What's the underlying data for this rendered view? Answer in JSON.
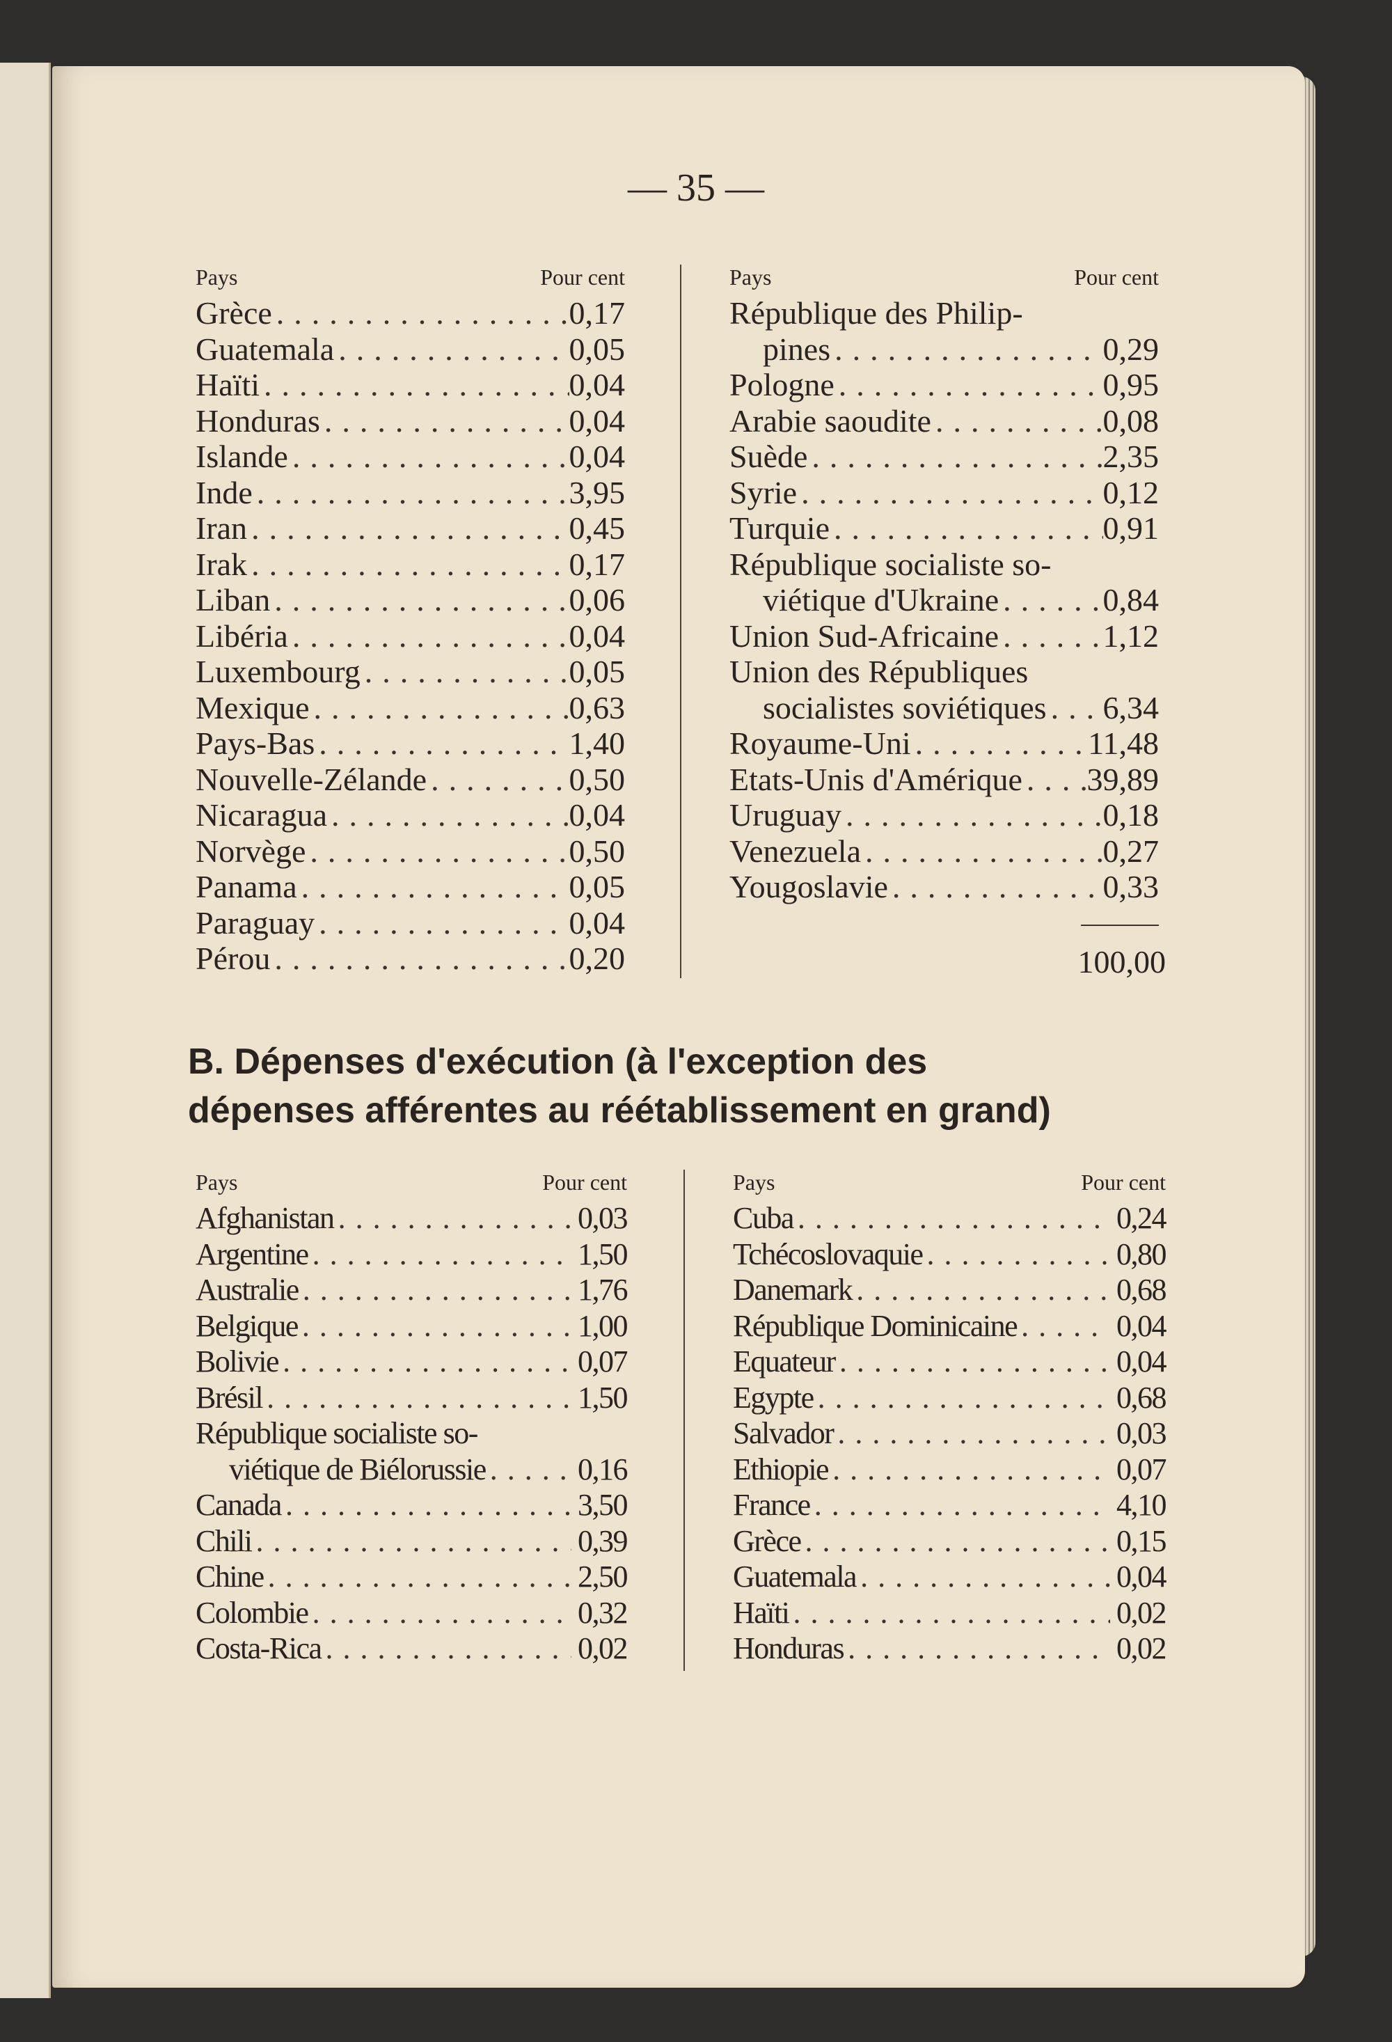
{
  "page_number": "— 35 —",
  "headers": {
    "country": "Pays",
    "percent": "Pour cent"
  },
  "section_a": {
    "left": [
      {
        "lines": [
          "Grèce"
        ],
        "value": "0,17"
      },
      {
        "lines": [
          "Guatemala"
        ],
        "value": "0,05"
      },
      {
        "lines": [
          "Haïti"
        ],
        "value": "0,04"
      },
      {
        "lines": [
          "Honduras"
        ],
        "value": "0,04"
      },
      {
        "lines": [
          "Islande"
        ],
        "value": "0,04"
      },
      {
        "lines": [
          "Inde"
        ],
        "value": "3,95"
      },
      {
        "lines": [
          "Iran"
        ],
        "value": "0,45"
      },
      {
        "lines": [
          "Irak"
        ],
        "value": "0,17"
      },
      {
        "lines": [
          "Liban"
        ],
        "value": "0,06"
      },
      {
        "lines": [
          "Libéria"
        ],
        "value": "0,04"
      },
      {
        "lines": [
          "Luxembourg"
        ],
        "value": "0,05"
      },
      {
        "lines": [
          "Mexique"
        ],
        "value": "0,63"
      },
      {
        "lines": [
          "Pays-Bas"
        ],
        "value": "1,40"
      },
      {
        "lines": [
          "Nouvelle-Zélande"
        ],
        "value": "0,50"
      },
      {
        "lines": [
          "Nicaragua"
        ],
        "value": "0,04"
      },
      {
        "lines": [
          "Norvège"
        ],
        "value": "0,50"
      },
      {
        "lines": [
          "Panama"
        ],
        "value": "0,05"
      },
      {
        "lines": [
          "Paraguay"
        ],
        "value": "0,04"
      },
      {
        "lines": [
          "Pérou"
        ],
        "value": "0,20"
      }
    ],
    "right": [
      {
        "lines": [
          "République des Philip-",
          "pines"
        ],
        "value": "0,29"
      },
      {
        "lines": [
          "Pologne"
        ],
        "value": "0,95"
      },
      {
        "lines": [
          "Arabie saoudite"
        ],
        "value": "0,08"
      },
      {
        "lines": [
          "Suède"
        ],
        "value": "2,35"
      },
      {
        "lines": [
          "Syrie"
        ],
        "value": "0,12"
      },
      {
        "lines": [
          "Turquie"
        ],
        "value": "0,91"
      },
      {
        "lines": [
          "République socialiste so-",
          "viétique d'Ukraine"
        ],
        "value": "0,84"
      },
      {
        "lines": [
          "Union Sud-Africaine"
        ],
        "value": "1,12"
      },
      {
        "lines": [
          "Union des Républiques",
          "socialistes soviétiques"
        ],
        "value": "6,34"
      },
      {
        "lines": [
          "Royaume-Uni"
        ],
        "value": "11,48"
      },
      {
        "lines": [
          "Etats-Unis d'Amérique"
        ],
        "value": "39,89"
      },
      {
        "lines": [
          "Uruguay"
        ],
        "value": "0,18"
      },
      {
        "lines": [
          "Venezuela"
        ],
        "value": "0,27"
      },
      {
        "lines": [
          "Yougoslavie"
        ],
        "value": "0,33"
      }
    ],
    "total": "100,00"
  },
  "section_b": {
    "title_line1": "B. Dépenses d'exécution (à l'exception des",
    "title_line2": "dépenses afférentes au réétablissement en grand)",
    "left": [
      {
        "lines": [
          "Afghanistan"
        ],
        "value": "0,03"
      },
      {
        "lines": [
          "Argentine"
        ],
        "value": "1,50"
      },
      {
        "lines": [
          "Australie"
        ],
        "value": "1,76"
      },
      {
        "lines": [
          "Belgique"
        ],
        "value": "1,00"
      },
      {
        "lines": [
          "Bolivie"
        ],
        "value": "0,07"
      },
      {
        "lines": [
          "Brésil"
        ],
        "value": "1,50"
      },
      {
        "lines": [
          "République socialiste so-",
          "viétique de Biélorussie"
        ],
        "value": "0,16"
      },
      {
        "lines": [
          "Canada"
        ],
        "value": "3,50"
      },
      {
        "lines": [
          "Chili"
        ],
        "value": "0,39"
      },
      {
        "lines": [
          "Chine"
        ],
        "value": "2,50"
      },
      {
        "lines": [
          "Colombie"
        ],
        "value": "0,32"
      },
      {
        "lines": [
          "Costa-Rica"
        ],
        "value": "0,02"
      }
    ],
    "right": [
      {
        "lines": [
          "Cuba"
        ],
        "value": "0,24"
      },
      {
        "lines": [
          "Tchécoslovaquie"
        ],
        "value": "0,80"
      },
      {
        "lines": [
          "Danemark"
        ],
        "value": "0,68"
      },
      {
        "lines": [
          "République Dominicaine"
        ],
        "value": "0,04"
      },
      {
        "lines": [
          "Equateur"
        ],
        "value": "0,04"
      },
      {
        "lines": [
          "Egypte"
        ],
        "value": "0,68"
      },
      {
        "lines": [
          "Salvador"
        ],
        "value": "0,03"
      },
      {
        "lines": [
          "Ethiopie"
        ],
        "value": "0,07"
      },
      {
        "lines": [
          "France"
        ],
        "value": "4,10"
      },
      {
        "lines": [
          "Grèce"
        ],
        "value": "0,15"
      },
      {
        "lines": [
          "Guatemala"
        ],
        "value": "0,04"
      },
      {
        "lines": [
          "Haïti"
        ],
        "value": "0,02"
      },
      {
        "lines": [
          "Honduras"
        ],
        "value": "0,02"
      }
    ]
  }
}
